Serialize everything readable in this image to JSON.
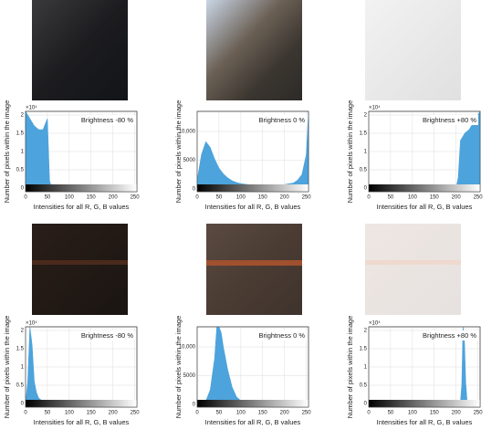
{
  "chart_data": [
    {
      "type": "area",
      "annotation": "Brightness -80 %",
      "y_multiplier": "×10⁴",
      "ylabel": "Number of pixels within the image",
      "xlabel": "Intensities for all R, G, B values",
      "color": "#4da3dc",
      "x": [
        0,
        10,
        20,
        30,
        40,
        50,
        55,
        60,
        100,
        150,
        200,
        255
      ],
      "values": [
        2.1,
        1.9,
        1.7,
        1.6,
        1.6,
        1.9,
        0.2,
        0,
        0,
        0,
        0,
        0
      ],
      "xlim": [
        0,
        255
      ],
      "xticks": [
        0,
        50,
        100,
        150,
        200,
        250
      ],
      "ylim": [
        -0.1,
        2.1
      ],
      "yticks": [
        0,
        0.5,
        1,
        1.5,
        2
      ],
      "grid": true
    },
    {
      "type": "area",
      "annotation": "Brightness 0 %",
      "ylabel": "Number of pixels within the image",
      "xlabel": "Intensities for all R, G, B values",
      "color": "#4da3dc",
      "x": [
        0,
        10,
        20,
        30,
        40,
        50,
        60,
        70,
        80,
        90,
        100,
        120,
        150,
        180,
        200,
        220,
        230,
        240,
        250,
        255
      ],
      "values": [
        1500,
        6000,
        8200,
        7200,
        5200,
        3600,
        2600,
        1900,
        1400,
        1100,
        900,
        700,
        600,
        650,
        750,
        1000,
        1500,
        2500,
        6000,
        13000
      ],
      "xlim": [
        0,
        255
      ],
      "xticks": [
        0,
        50,
        100,
        150,
        200,
        250
      ],
      "ylim": [
        -500,
        13500
      ],
      "yticks": [
        0,
        5000,
        {
          "value": 10000,
          "label": "10,000"
        }
      ],
      "grid": true
    },
    {
      "type": "area",
      "annotation": "Brightness +80 %",
      "y_multiplier": "×10⁴",
      "ylabel": "Number of pixels within the image",
      "xlabel": "Intensities for all R, G, B values",
      "color": "#4da3dc",
      "x": [
        0,
        50,
        100,
        150,
        200,
        205,
        210,
        220,
        230,
        240,
        250,
        255
      ],
      "values": [
        0,
        0,
        0,
        0,
        0,
        0.3,
        1.3,
        1.5,
        1.6,
        1.8,
        2.0,
        2.1
      ],
      "xlim": [
        0,
        255
      ],
      "xticks": [
        0,
        50,
        100,
        150,
        200,
        250
      ],
      "ylim": [
        -0.1,
        2.1
      ],
      "yticks": [
        0,
        0.5,
        1,
        1.5,
        2
      ],
      "grid": true
    },
    {
      "type": "area",
      "annotation": "Brightness -80 %",
      "y_multiplier": "×10⁴",
      "ylabel": "Number of pixels within the image",
      "xlabel": "Intensities for all R, G, B values",
      "color": "#4da3dc",
      "x": [
        0,
        5,
        10,
        15,
        20,
        25,
        30,
        40,
        50,
        100,
        150,
        200,
        255
      ],
      "values": [
        0,
        0.6,
        2.1,
        1.6,
        0.6,
        0.3,
        0.15,
        0.05,
        0,
        0,
        0,
        0,
        0
      ],
      "xlim": [
        0,
        255
      ],
      "xticks": [
        0,
        50,
        100,
        150,
        200,
        250
      ],
      "ylim": [
        -0.1,
        2.1
      ],
      "yticks": [
        0,
        0.5,
        1,
        1.5,
        2
      ],
      "grid": true
    },
    {
      "type": "area",
      "annotation": "Brightness 0 %",
      "ylabel": "Number of pixels within the image",
      "xlabel": "Intensities for all R, G, B values",
      "color": "#4da3dc",
      "x": [
        0,
        10,
        20,
        30,
        40,
        45,
        50,
        55,
        60,
        70,
        80,
        90,
        100,
        120,
        150,
        200,
        255
      ],
      "values": [
        0,
        100,
        600,
        2500,
        8000,
        13500,
        13500,
        12500,
        10000,
        6000,
        3000,
        1300,
        600,
        200,
        50,
        0,
        0
      ],
      "xlim": [
        0,
        255
      ],
      "xticks": [
        0,
        50,
        100,
        150,
        200,
        250
      ],
      "ylim": [
        -500,
        13500
      ],
      "yticks": [
        0,
        5000,
        {
          "value": 10000,
          "label": "10,000"
        }
      ],
      "grid": true
    },
    {
      "type": "area",
      "annotation": "Brightness +80 %",
      "y_multiplier": "×10⁴",
      "ylabel": "Number of pixels within the image",
      "xlabel": "Intensities for all R, G, B values",
      "color": "#4da3dc",
      "x": [
        0,
        50,
        100,
        150,
        200,
        210,
        213,
        216,
        219,
        222,
        225,
        230,
        255
      ],
      "values": [
        0,
        0,
        0,
        0,
        0,
        0.05,
        0.5,
        2.1,
        1.8,
        0.6,
        0.1,
        0,
        0
      ],
      "xlim": [
        0,
        255
      ],
      "xticks": [
        0,
        50,
        100,
        150,
        200,
        250
      ],
      "ylim": [
        -0.1,
        2.1
      ],
      "yticks": [
        0,
        0.5,
        1,
        1.5,
        2
      ],
      "grid": true
    }
  ]
}
